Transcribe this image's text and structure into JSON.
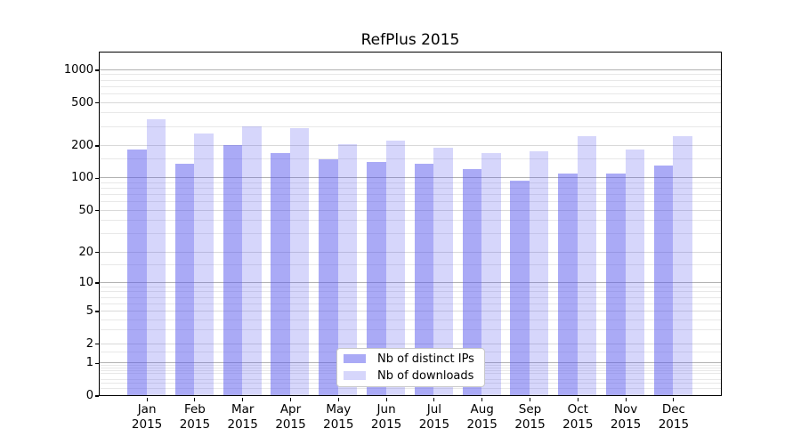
{
  "figure": {
    "background": "#ffffff"
  },
  "chart_data": {
    "type": "bar",
    "title": "RefPlus 2015",
    "categories": [
      "Jan",
      "Feb",
      "Mar",
      "Apr",
      "May",
      "Jun",
      "Jul",
      "Aug",
      "Sep",
      "Oct",
      "Nov",
      "Dec"
    ],
    "category_year": "2015",
    "series": [
      {
        "name": "Nb of distinct IPs",
        "color": "#5555ee",
        "alpha": 0.5,
        "solid_color": "#aaaaf6",
        "values": [
          185,
          135,
          200,
          170,
          150,
          140,
          135,
          120,
          95,
          110,
          110,
          130
        ]
      },
      {
        "name": "Nb of downloads",
        "color": "#5555ee",
        "alpha": 0.24,
        "solid_color": "#d6d6f9",
        "values": [
          350,
          260,
          300,
          290,
          205,
          220,
          190,
          170,
          175,
          245,
          185,
          245
        ]
      }
    ],
    "xlabel": "",
    "ylabel": "",
    "yscale": "log1p",
    "ylim": [
      0,
      1431
    ],
    "y_ticks": [
      0,
      1,
      2,
      5,
      10,
      20,
      50,
      100,
      200,
      500,
      1000
    ],
    "y_minor_gridlines": [
      0.15,
      0.3,
      0.4,
      0.6,
      0.7,
      0.8,
      0.9,
      1.5,
      3,
      4,
      6,
      7,
      8,
      9,
      15,
      30,
      40,
      60,
      70,
      80,
      90,
      150,
      300,
      400,
      600,
      700,
      800,
      900
    ],
    "grid": "both",
    "legend_position": "lower center",
    "grid_colors": {
      "decade": "#b2b2b2",
      "labeled": "#d9d9d9",
      "minor": "#e8e8e8"
    }
  }
}
